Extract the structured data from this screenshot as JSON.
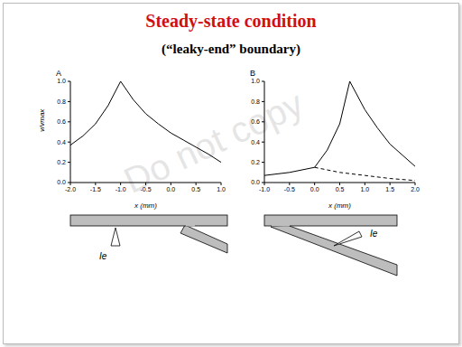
{
  "title": "Steady-state condition",
  "subtitle": "(“leaky-end” boundary)",
  "watermark": "Do not copy",
  "chart_data": [
    {
      "type": "line",
      "panel": "A",
      "x_label": "x (mm)",
      "y_label": "v/vmax",
      "xlim": [
        -2,
        1
      ],
      "xticks": [
        {
          "value": -2,
          "label": "-2.0"
        },
        {
          "value": -1.5,
          "label": "-1.5"
        },
        {
          "value": -1,
          "label": "-1.0"
        },
        {
          "value": -0.5,
          "label": "-0.5"
        },
        {
          "value": 0,
          "label": "0.0"
        },
        {
          "value": 0.5,
          "label": "0.5"
        },
        {
          "value": 1,
          "label": "1.0"
        }
      ],
      "ylim": [
        0,
        1
      ],
      "yticks": [
        {
          "value": 0,
          "label": "0.0"
        },
        {
          "value": 0.2,
          "label": "0.2"
        },
        {
          "value": 0.4,
          "label": "0.4"
        },
        {
          "value": 0.6,
          "label": "0.6"
        },
        {
          "value": 0.8,
          "label": "0.8"
        },
        {
          "value": 1,
          "label": "1.0"
        }
      ],
      "annotations": [
        {
          "text": "Ie"
        }
      ],
      "series": [
        {
          "color": "#000000",
          "line_style": "solid",
          "x": [
            -2,
            -1.75,
            -1.5,
            -1.25,
            -1,
            -0.75,
            -0.5,
            -0.25,
            0,
            0.25,
            0.5,
            0.75,
            1
          ],
          "values": [
            0.37,
            0.46,
            0.58,
            0.76,
            1.0,
            0.82,
            0.68,
            0.58,
            0.49,
            0.42,
            0.35,
            0.28,
            0.2
          ]
        }
      ]
    },
    {
      "type": "line",
      "panel": "B",
      "x_label": "x (mm)",
      "xlim": [
        -1,
        2
      ],
      "xticks": [
        {
          "value": -1,
          "label": "-1.0"
        },
        {
          "value": -0.5,
          "label": "-0.5"
        },
        {
          "value": 0,
          "label": "0.0"
        },
        {
          "value": 0.5,
          "label": "0.5"
        },
        {
          "value": 1,
          "label": "1.0"
        },
        {
          "value": 1.5,
          "label": "1.5"
        },
        {
          "value": 2,
          "label": "2.0"
        }
      ],
      "ylim": [
        0,
        1
      ],
      "yticks": [
        {
          "value": 0,
          "label": "0.0"
        },
        {
          "value": 0.2,
          "label": "0.2"
        },
        {
          "value": 0.4,
          "label": "0.4"
        },
        {
          "value": 0.6,
          "label": "0.6"
        },
        {
          "value": 0.8,
          "label": "0.8"
        },
        {
          "value": 1,
          "label": "1.0"
        }
      ],
      "annotations": [
        {
          "text": "Ie"
        }
      ],
      "series": [
        {
          "color": "#000000",
          "line_style": "solid",
          "x": [
            -1,
            -0.5,
            0,
            0.25,
            0.5,
            0.7,
            1,
            1.25,
            1.5,
            1.75,
            2
          ],
          "values": [
            0.07,
            0.1,
            0.15,
            0.32,
            0.58,
            1.0,
            0.72,
            0.54,
            0.38,
            0.27,
            0.16
          ]
        },
        {
          "color": "#000000",
          "line_style": "dashed",
          "x": [
            0,
            0.5,
            1,
            1.5,
            2
          ],
          "values": [
            0.15,
            0.1,
            0.07,
            0.04,
            0.02
          ]
        }
      ]
    }
  ]
}
